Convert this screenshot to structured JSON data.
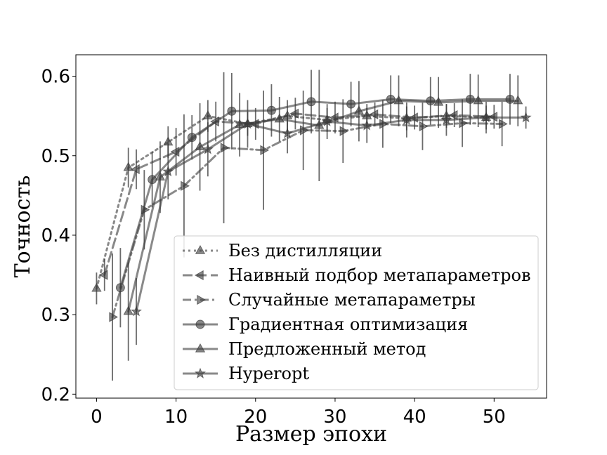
{
  "chart_data": {
    "type": "line",
    "xlabel": "Размер эпохи",
    "ylabel": "Точность",
    "xlim": [
      -2.6,
      56.6
    ],
    "ylim": [
      0.195,
      0.627
    ],
    "xticks": [
      0,
      10,
      20,
      30,
      40,
      50
    ],
    "yticks": [
      0.2,
      0.3,
      0.4,
      0.5,
      0.6
    ],
    "xtick_labels": [
      "0",
      "10",
      "20",
      "30",
      "40",
      "50"
    ],
    "ytick_labels": [
      "0.2",
      "0.3",
      "0.4",
      "0.5",
      "0.6"
    ],
    "grid": false,
    "legend_position": "lower-right",
    "series": [
      {
        "name": "Без дистилляции",
        "linestyle": "dotted",
        "marker": "triangle-up",
        "x": [
          0,
          4,
          9,
          14,
          19,
          24,
          29,
          34,
          39,
          44,
          49
        ],
        "y": [
          0.333,
          0.485,
          0.517,
          0.55,
          0.54,
          0.55,
          0.545,
          0.55,
          0.547,
          0.55,
          0.548
        ],
        "err": [
          0.02,
          0.025,
          0.02,
          0.02,
          0.015,
          0.02,
          0.015,
          0.015,
          0.015,
          0.015,
          0.015
        ]
      },
      {
        "name": "Наивный подбор метапараметров",
        "linestyle": "dashed",
        "marker": "triangle-left",
        "x": [
          1,
          5,
          10,
          15,
          20,
          25,
          30,
          35,
          40,
          45,
          50
        ],
        "y": [
          0.35,
          0.483,
          0.505,
          0.543,
          0.54,
          0.553,
          0.548,
          0.552,
          0.548,
          0.551,
          0.549
        ],
        "err": [
          0.02,
          0.025,
          0.03,
          0.025,
          0.02,
          0.02,
          0.02,
          0.015,
          0.015,
          0.015,
          0.015
        ]
      },
      {
        "name": "Случайные метапараметры",
        "linestyle": "dashdot",
        "marker": "triangle-right",
        "x": [
          2,
          6,
          11,
          16,
          21,
          26,
          31,
          36,
          41,
          46,
          51
        ],
        "y": [
          0.297,
          0.432,
          0.462,
          0.51,
          0.507,
          0.532,
          0.531,
          0.54,
          0.537,
          0.541,
          0.54
        ],
        "err": [
          0.08,
          0.05,
          0.09,
          0.095,
          0.075,
          0.05,
          0.04,
          0.03,
          0.03,
          0.03,
          0.028
        ]
      },
      {
        "name": "Градиентная оптимизация",
        "linestyle": "solid",
        "marker": "circle",
        "x": [
          3,
          7,
          12,
          17,
          22,
          27,
          32,
          37,
          42,
          47,
          52
        ],
        "y": [
          0.334,
          0.47,
          0.523,
          0.556,
          0.557,
          0.568,
          0.565,
          0.571,
          0.569,
          0.571,
          0.571
        ],
        "err": [
          0.05,
          0.035,
          0.028,
          0.048,
          0.033,
          0.04,
          0.028,
          0.03,
          0.03,
          0.032,
          0.032
        ]
      },
      {
        "name": "Предложенный метод",
        "linestyle": "solid",
        "marker": "triangle-up",
        "x": [
          4,
          8,
          13,
          18,
          23,
          28,
          33,
          38,
          43,
          48,
          53
        ],
        "y": [
          0.304,
          0.473,
          0.511,
          0.539,
          0.546,
          0.538,
          0.556,
          0.569,
          0.567,
          0.569,
          0.569
        ],
        "err": [
          0.062,
          0.045,
          0.055,
          0.04,
          0.028,
          0.07,
          0.038,
          0.032,
          0.032,
          0.033,
          0.032
        ]
      },
      {
        "name": "Hyperopt",
        "linestyle": "solid",
        "marker": "star",
        "x": [
          5,
          9,
          14,
          19,
          24,
          29,
          34,
          39,
          44,
          49,
          54
        ],
        "y": [
          0.304,
          0.48,
          0.508,
          0.54,
          0.528,
          0.543,
          0.538,
          0.545,
          0.545,
          0.548,
          0.548
        ],
        "err": [
          0.042,
          0.035,
          0.034,
          0.03,
          0.025,
          0.022,
          0.022,
          0.022,
          0.02,
          0.02,
          0.014
        ]
      }
    ]
  }
}
